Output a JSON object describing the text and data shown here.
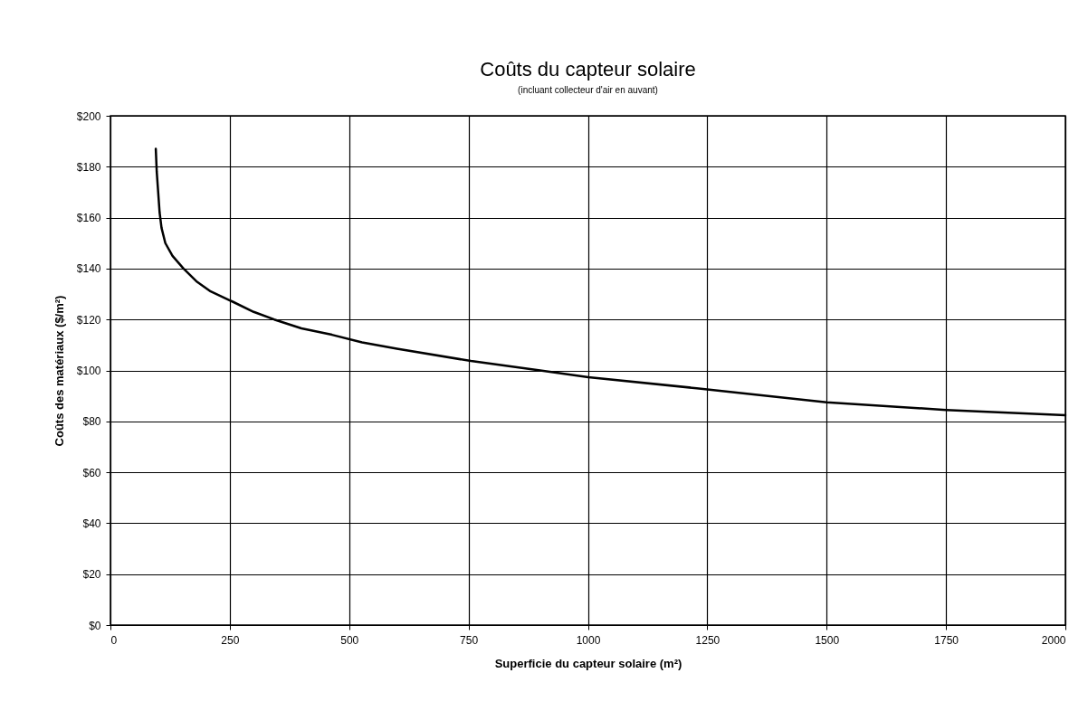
{
  "chart_data": {
    "type": "line",
    "title": "Coûts du capteur solaire",
    "subtitle": "(incluant collecteur d'air en auvant)",
    "xlabel": "Superficie du capteur solaire (m²)",
    "ylabel": "Coûts des matériaux ($/m²)",
    "x": [
      95,
      97,
      100,
      103,
      107,
      115,
      130,
      153,
      180,
      210,
      256,
      300,
      343,
      400,
      464,
      527,
      600,
      755,
      900,
      1001,
      1228,
      1500,
      1750,
      2000
    ],
    "series": [
      {
        "color": "#000000",
        "values": [
          187,
          178,
          170,
          162,
          156,
          150,
          145,
          140,
          135,
          131,
          127,
          123,
          120,
          116.5,
          114,
          111,
          108.5,
          103.7,
          100,
          97.3,
          93,
          87.5,
          84.5,
          82.4
        ]
      }
    ],
    "xlim": [
      0,
      2000
    ],
    "xticks": [
      0,
      250,
      500,
      750,
      1000,
      1250,
      1500,
      1750,
      2000
    ],
    "ylim": [
      0,
      200
    ],
    "yticks": [
      {
        "value": 0,
        "label": "$0"
      },
      {
        "value": 20,
        "label": "$20"
      },
      {
        "value": 40,
        "label": "$40"
      },
      {
        "value": 60,
        "label": "$60"
      },
      {
        "value": 80,
        "label": "$80"
      },
      {
        "value": 100,
        "label": "$100"
      },
      {
        "value": 120,
        "label": "$120"
      },
      {
        "value": 140,
        "label": "$140"
      },
      {
        "value": 160,
        "label": "$160"
      },
      {
        "value": 180,
        "label": "$180"
      },
      {
        "value": 200,
        "label": "$200"
      }
    ],
    "grid": true,
    "marker": "none",
    "line_style": "solid"
  }
}
